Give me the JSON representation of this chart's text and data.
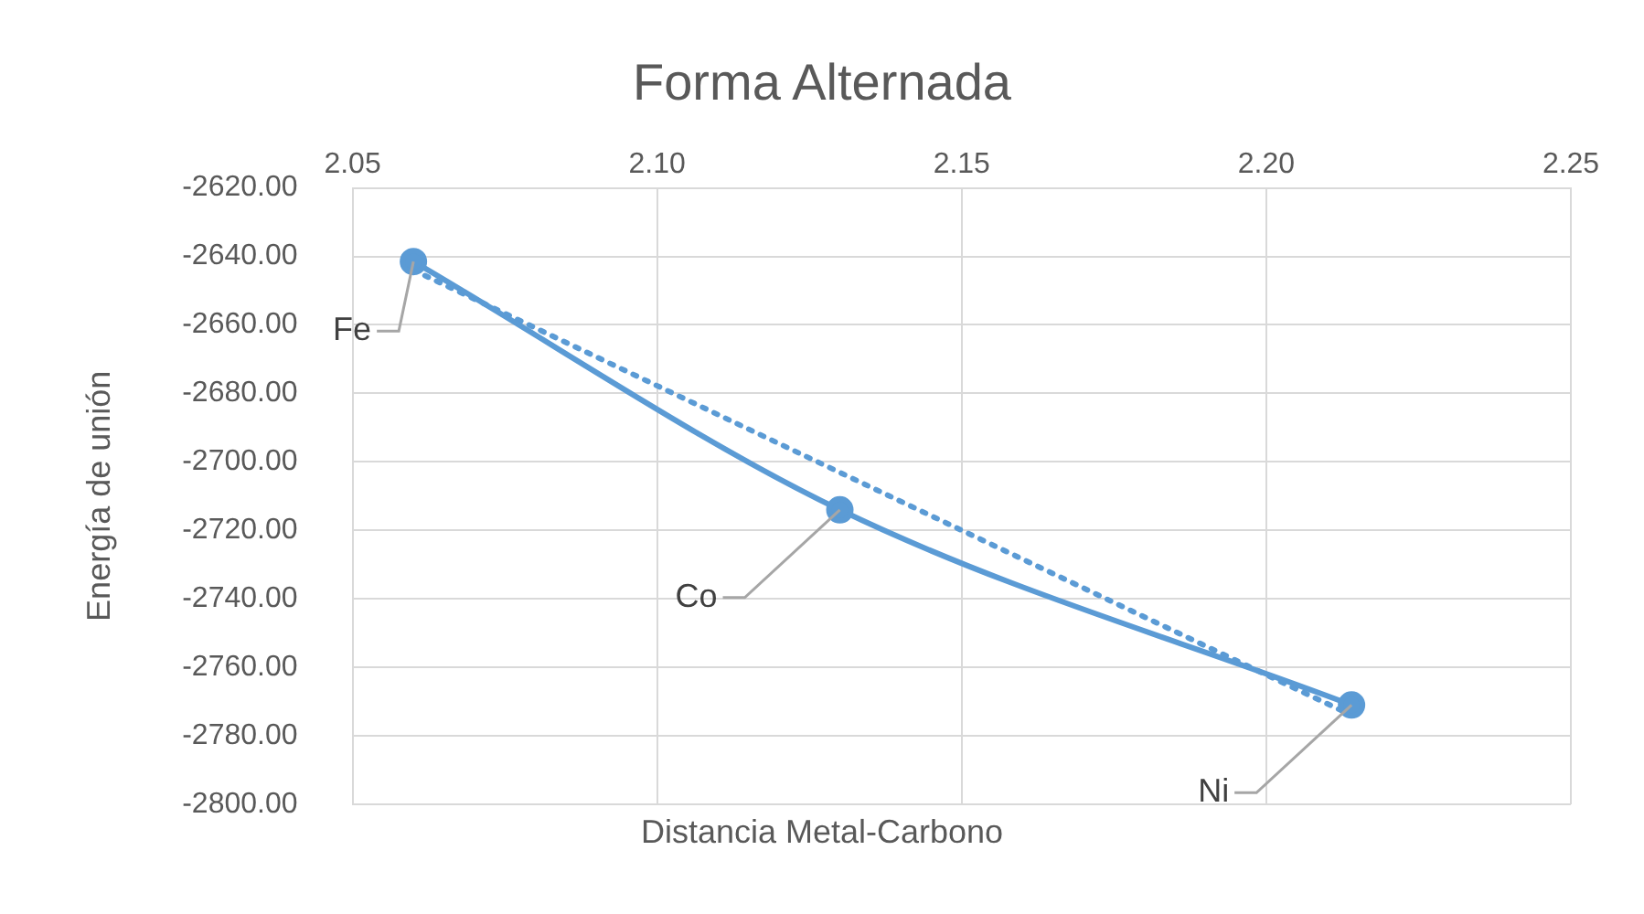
{
  "chart_data": {
    "type": "line",
    "title": "Forma Alternada",
    "xlabel": "Distancia Metal-Carbono",
    "ylabel": "Energía de unión",
    "x": [
      2.06,
      2.13,
      2.214
    ],
    "series": [
      {
        "color": "#5b9bd5",
        "values": [
          -2641.5,
          -2714,
          -2771
        ],
        "marker": "circle",
        "line_style": "solid"
      },
      {
        "type": "line",
        "x": [
          2.06,
          2.214
        ],
        "color": "#5b9bd5",
        "values": [
          -2644,
          -2774
        ],
        "marker": "none",
        "line_style": "dotted"
      }
    ],
    "annotations": [
      {
        "text": "Fe",
        "x": 2.06,
        "y": -2641.5
      },
      {
        "text": "Co",
        "x": 2.13,
        "y": -2714
      },
      {
        "text": "Ni",
        "x": 2.214,
        "y": -2771
      }
    ],
    "xlim": [
      2.05,
      2.25
    ],
    "xticks": [
      {
        "value": 2.05,
        "label": "2.05"
      },
      {
        "value": 2.1,
        "label": "2.10"
      },
      {
        "value": 2.15,
        "label": "2.15"
      },
      {
        "value": 2.2,
        "label": "2.20"
      },
      {
        "value": 2.25,
        "label": "2.25"
      }
    ],
    "ylim": [
      -2800,
      -2620
    ],
    "yticks": [
      {
        "value": -2620,
        "label": "-2620.00"
      },
      {
        "value": -2640,
        "label": "-2640.00"
      },
      {
        "value": -2660,
        "label": "-2660.00"
      },
      {
        "value": -2680,
        "label": "-2680.00"
      },
      {
        "value": -2700,
        "label": "-2700.00"
      },
      {
        "value": -2720,
        "label": "-2720.00"
      },
      {
        "value": -2740,
        "label": "-2740.00"
      },
      {
        "value": -2760,
        "label": "-2760.00"
      },
      {
        "value": -2780,
        "label": "-2780.00"
      },
      {
        "value": -2800,
        "label": "-2800.00"
      }
    ],
    "grid": true,
    "legend": false
  }
}
